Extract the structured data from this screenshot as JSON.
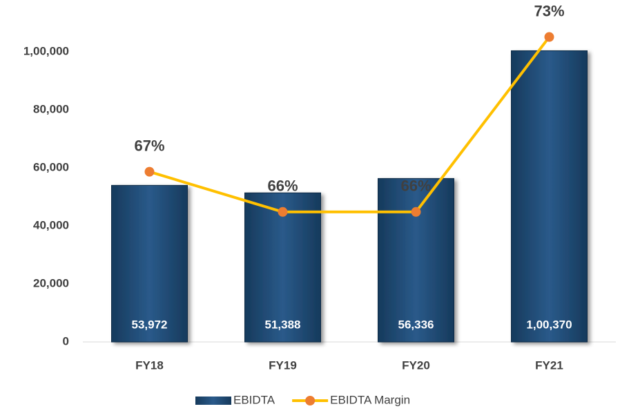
{
  "chart_data": {
    "type": "bar_line",
    "categories": [
      "FY18",
      "FY19",
      "FY20",
      "FY21"
    ],
    "series": [
      {
        "name": "EBIDTA",
        "type": "bar",
        "color": "#1f4e79",
        "values": [
          53972,
          51388,
          56336,
          100370
        ],
        "value_labels": [
          "53,972",
          "51,388",
          "56,336",
          "1,00,370"
        ]
      },
      {
        "name": "EBIDTA Margin",
        "type": "line",
        "axis": "y2",
        "color": "#ffc000",
        "marker_color": "#ed7d31",
        "values": [
          67.2,
          65.5,
          65.5,
          72.9
        ],
        "value_labels": [
          "67%",
          "66%",
          "66%",
          "73%"
        ]
      }
    ],
    "ylim": [
      0,
      110000
    ],
    "yticks": [
      0,
      {
        "value": 20000,
        "label": "20,000"
      },
      {
        "value": 40000,
        "label": "40,000"
      },
      {
        "value": 60000,
        "label": "60,000"
      },
      {
        "value": 80000,
        "label": "80,000"
      },
      {
        "value": 100000,
        "label": "1,00,000"
      }
    ],
    "y2lim": [
      60,
      73.5
    ],
    "grid": false,
    "legend": "bottom"
  }
}
